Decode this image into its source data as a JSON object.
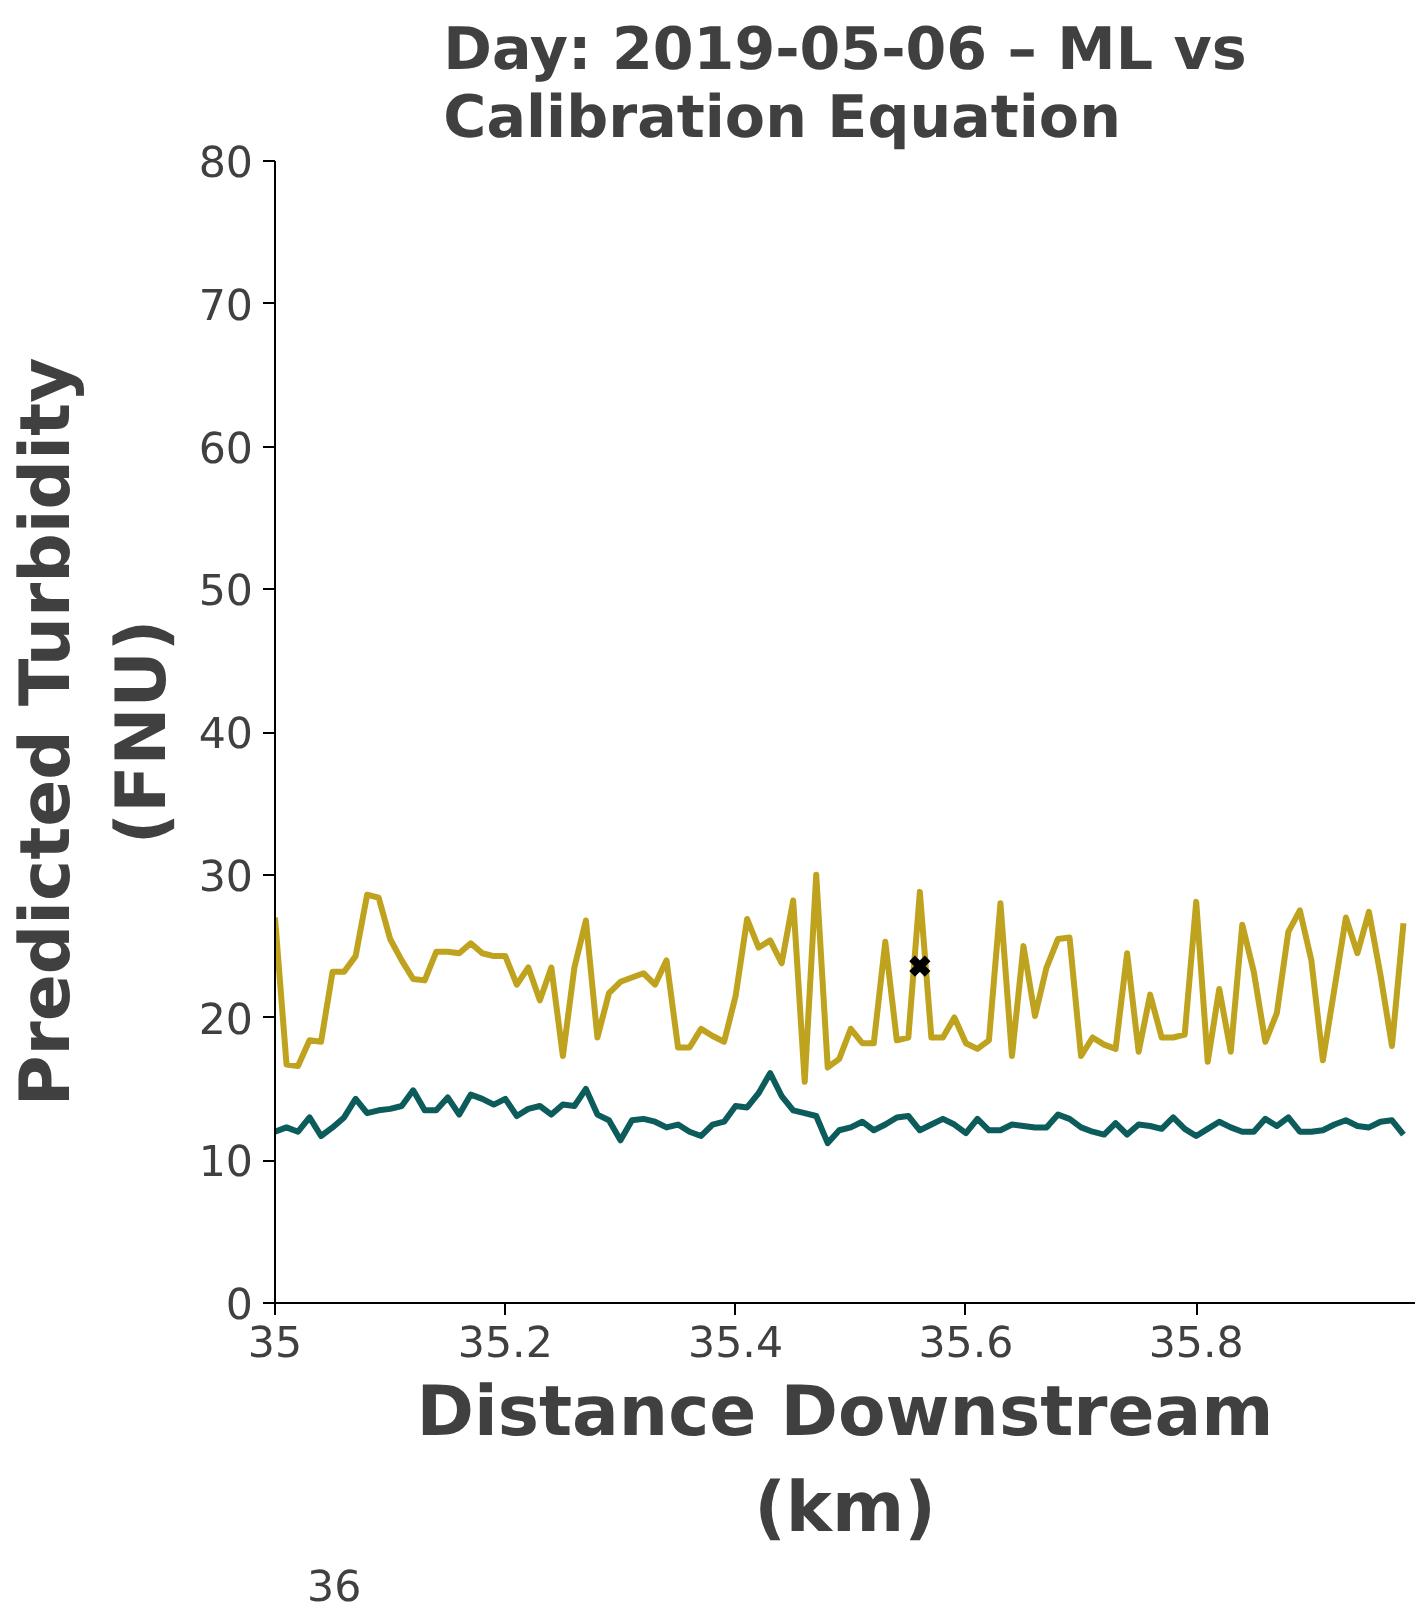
{
  "chart_data": {
    "type": "line",
    "title": "Day: 2019-05-06 – ML vs\nCalibration Equation",
    "xlabel": "Distance Downstream\n(km)",
    "ylabel": "Predicted Turbidity\n(FNU)",
    "x": [
      35.0,
      35.01,
      35.02,
      35.03,
      35.04,
      35.05,
      35.06,
      35.07,
      35.08,
      35.09,
      35.1,
      35.11,
      35.12,
      35.13,
      35.14,
      35.15,
      35.16,
      35.17,
      35.18,
      35.19,
      35.2,
      35.21,
      35.22,
      35.23,
      35.24,
      35.25,
      35.26,
      35.27,
      35.28,
      35.29,
      35.3,
      35.31,
      35.32,
      35.33,
      35.34,
      35.35,
      35.36,
      35.37,
      35.38,
      35.39,
      35.4,
      35.41,
      35.42,
      35.43,
      35.44,
      35.45,
      35.46,
      35.47,
      35.48,
      35.49,
      35.5,
      35.51,
      35.52,
      35.53,
      35.54,
      35.55,
      35.56,
      35.57,
      35.58,
      35.59,
      35.6,
      35.61,
      35.62,
      35.63,
      35.64,
      35.65,
      35.66,
      35.67,
      35.68,
      35.69,
      35.7,
      35.71,
      35.72,
      35.73,
      35.74,
      35.75,
      35.76,
      35.77,
      35.78,
      35.79,
      35.8,
      35.81,
      35.82,
      35.83,
      35.84,
      35.85,
      35.86,
      35.87,
      35.88,
      35.89,
      35.9,
      35.91,
      35.92,
      35.93,
      35.94,
      35.95,
      35.96,
      35.97,
      35.98
    ],
    "series": [
      {
        "color": "#bfa21e",
        "line_style": "solid",
        "marker": "none",
        "values": [
          27.0,
          16.7,
          16.6,
          18.4,
          18.3,
          23.2,
          23.2,
          24.3,
          28.6,
          28.4,
          25.5,
          24.0,
          22.7,
          22.6,
          24.6,
          24.6,
          24.5,
          25.2,
          24.5,
          24.3,
          24.3,
          22.3,
          23.5,
          21.2,
          23.5,
          17.3,
          23.5,
          26.8,
          18.6,
          21.7,
          22.5,
          22.8,
          23.1,
          22.3,
          24.0,
          17.9,
          17.9,
          19.2,
          18.7,
          18.3,
          21.5,
          26.9,
          24.9,
          25.4,
          23.8,
          28.2,
          15.5,
          30.0,
          16.5,
          17.1,
          19.2,
          18.2,
          18.2,
          25.3,
          18.4,
          18.6,
          28.8,
          18.6,
          18.6,
          20.0,
          18.2,
          17.8,
          18.4,
          28.0,
          17.3,
          25.0,
          20.1,
          23.5,
          25.5,
          25.6,
          17.3,
          18.6,
          18.1,
          17.8,
          24.5,
          17.6,
          21.6,
          18.6,
          18.6,
          18.8,
          28.1,
          16.9,
          22.0,
          17.6,
          26.5,
          23.2,
          18.3,
          20.3,
          26.0,
          27.5,
          24.0,
          17.0,
          22.0,
          27.0,
          24.5,
          27.4,
          23.0,
          18.0,
          26.6
        ]
      },
      {
        "color": "#0d5c5c",
        "line_style": "solid",
        "marker": "none",
        "values": [
          12.0,
          12.3,
          12.0,
          13.0,
          11.7,
          12.3,
          13.0,
          14.3,
          13.3,
          13.5,
          13.6,
          13.8,
          14.9,
          13.5,
          13.5,
          14.4,
          13.2,
          14.6,
          14.3,
          13.9,
          14.3,
          13.1,
          13.6,
          13.8,
          13.2,
          13.9,
          13.8,
          15.0,
          13.2,
          12.8,
          11.4,
          12.8,
          12.9,
          12.7,
          12.3,
          12.5,
          12.0,
          11.7,
          12.5,
          12.7,
          13.8,
          13.7,
          14.7,
          16.1,
          14.5,
          13.5,
          13.3,
          13.1,
          11.2,
          12.1,
          12.3,
          12.7,
          12.1,
          12.5,
          13.0,
          13.1,
          12.1,
          12.5,
          12.9,
          12.5,
          11.9,
          12.9,
          12.1,
          12.1,
          12.5,
          12.4,
          12.3,
          12.3,
          13.2,
          12.9,
          12.3,
          12.0,
          11.8,
          12.6,
          11.8,
          12.5,
          12.4,
          12.2,
          13.0,
          12.2,
          11.7,
          12.2,
          12.7,
          12.3,
          12.0,
          12.0,
          12.9,
          12.4,
          13.0,
          12.0,
          12.0,
          12.1,
          12.5,
          12.8,
          12.4,
          12.3,
          12.7,
          12.8,
          11.8
        ]
      },
      {
        "type": "scatter",
        "color": "#000000",
        "marker": "cross",
        "x": [
          35.56
        ],
        "values": [
          23.6
        ]
      }
    ],
    "xlim": [
      35.0,
      35.99
    ],
    "xticks": [
      35,
      {
        "value": 35.2,
        "label": "35.2"
      },
      {
        "value": 35.4,
        "label": "35.4"
      },
      {
        "value": 35.6,
        "label": "35.6"
      },
      {
        "value": 35.8,
        "label": "35.8"
      }
    ],
    "ylim": [
      0,
      80
    ],
    "yticks": [
      0,
      10,
      20,
      30,
      40,
      50,
      60,
      70,
      80
    ],
    "annotations": [
      "36"
    ],
    "grid": false
  }
}
